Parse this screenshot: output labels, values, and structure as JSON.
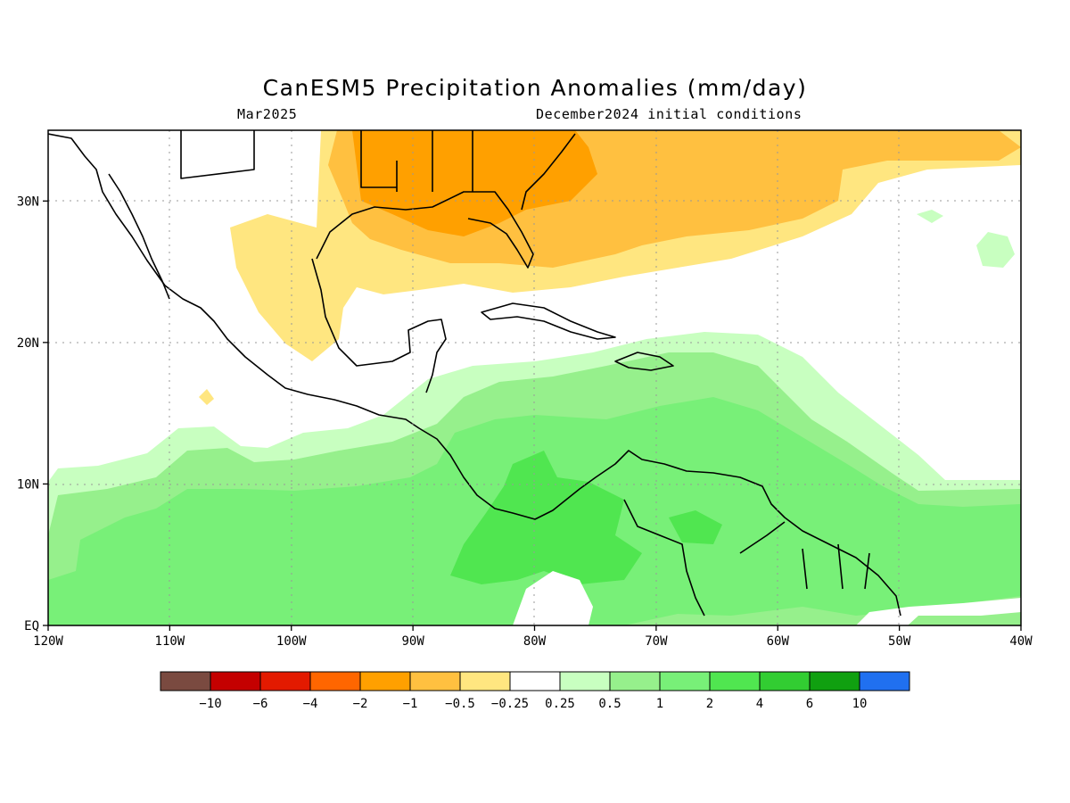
{
  "title": "CanESM5 Precipitation Anomalies (mm/day)",
  "valid_month": "Mar2025",
  "init_conditions": "December2024 initial conditions",
  "map": {
    "lon_range": [
      -120,
      -40
    ],
    "lat_range": [
      0,
      35
    ],
    "x_ticks": [
      {
        "lon": -120,
        "label": "120W"
      },
      {
        "lon": -110,
        "label": "110W"
      },
      {
        "lon": -100,
        "label": "100W"
      },
      {
        "lon": -90,
        "label": "90W"
      },
      {
        "lon": -80,
        "label": "80W"
      },
      {
        "lon": -70,
        "label": "70W"
      },
      {
        "lon": -60,
        "label": "60W"
      },
      {
        "lon": -50,
        "label": "50W"
      },
      {
        "lon": -40,
        "label": "40W"
      }
    ],
    "y_ticks": [
      {
        "lat": 0,
        "label": "EQ"
      },
      {
        "lat": 10,
        "label": "10N"
      },
      {
        "lat": 20,
        "label": "20N"
      },
      {
        "lat": 30,
        "label": "30N"
      }
    ],
    "grid": "dotted"
  },
  "colorbar": {
    "colors": [
      "#7a4a40",
      "#c40000",
      "#e31a00",
      "#ff6600",
      "#ffa000",
      "#ffc040",
      "#ffe680",
      "#ffffff",
      "#c8ffc0",
      "#96f08c",
      "#78f078",
      "#50e650",
      "#32cd32",
      "#10a010",
      "#2070f0"
    ],
    "labels": [
      "−10",
      "−6",
      "−4",
      "−2",
      "−1",
      "−0.5",
      "−0.25",
      "0.25",
      "0.5",
      "1",
      "2",
      "4",
      "6",
      "10"
    ]
  }
}
